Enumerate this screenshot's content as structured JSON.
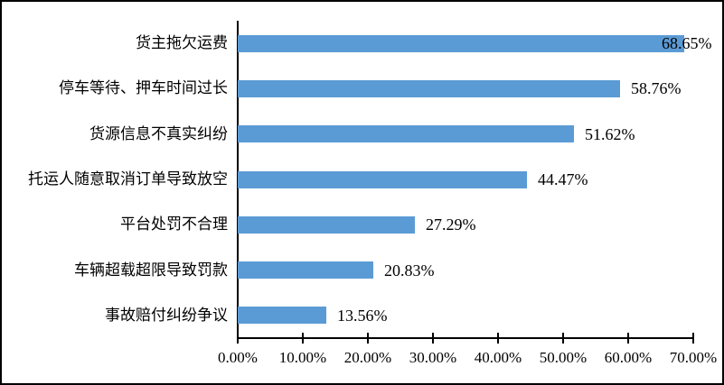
{
  "chart_data": {
    "type": "bar",
    "orientation": "horizontal",
    "title": "",
    "categories": [
      "货主拖欠运费",
      "停车等待、押车时间过长",
      "货源信息不真实纠纷",
      "托运人随意取消订单导致放空",
      "平台处罚不合理",
      "车辆超载超限导致罚款",
      "事故赔付纠纷争议"
    ],
    "values": [
      68.65,
      58.76,
      51.62,
      44.47,
      27.29,
      20.83,
      13.56
    ],
    "data_labels": [
      "68.65%",
      "58.76%",
      "51.62%",
      "44.47%",
      "27.29%",
      "20.83%",
      "13.56%"
    ],
    "x_ticks": [
      "0.00%",
      "10.00%",
      "20.00%",
      "30.00%",
      "40.00%",
      "50.00%",
      "60.00%",
      "70.00%"
    ],
    "x_tick_values": [
      0,
      10,
      20,
      30,
      40,
      50,
      60,
      70
    ],
    "xlim": [
      0,
      70
    ],
    "xlabel": "",
    "ylabel": "",
    "grid": false,
    "legend": false,
    "bar_color": "#5b9bd5",
    "axis_color": "#000000",
    "text_color": "#000000",
    "background_color": "#ffffff"
  }
}
